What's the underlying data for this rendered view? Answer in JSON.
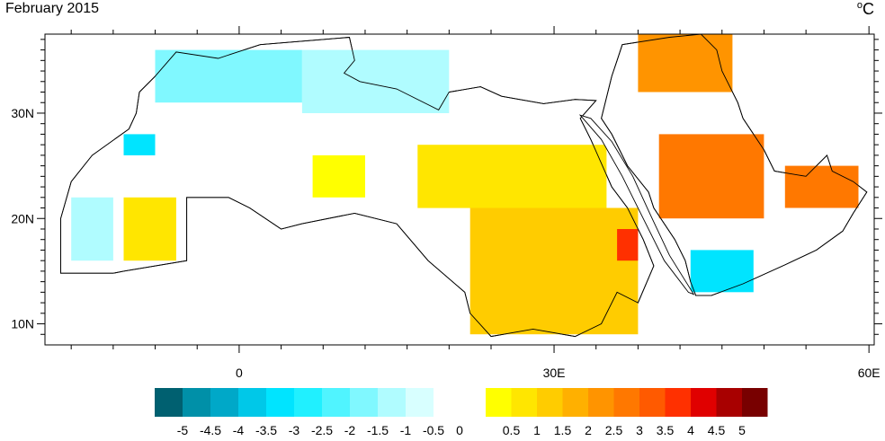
{
  "title": "February 2015",
  "units": {
    "degree": "o",
    "letter": "C"
  },
  "axes": {
    "lon_ticks": [
      {
        "value": -24,
        "label": ""
      },
      {
        "value": -20,
        "label": ""
      },
      {
        "value": -16,
        "label": ""
      },
      {
        "value": -12,
        "label": ""
      },
      {
        "value": -8,
        "label": ""
      },
      {
        "value": -4,
        "label": ""
      },
      {
        "value": 0,
        "label": "0"
      },
      {
        "value": 4,
        "label": ""
      },
      {
        "value": 8,
        "label": ""
      },
      {
        "value": 12,
        "label": ""
      },
      {
        "value": 16,
        "label": ""
      },
      {
        "value": 20,
        "label": ""
      },
      {
        "value": 24,
        "label": ""
      },
      {
        "value": 30,
        "label": "30E"
      },
      {
        "value": 34,
        "label": ""
      },
      {
        "value": 38,
        "label": ""
      },
      {
        "value": 42,
        "label": ""
      },
      {
        "value": 46,
        "label": ""
      },
      {
        "value": 50,
        "label": ""
      },
      {
        "value": 54,
        "label": ""
      },
      {
        "value": 60,
        "label": "60E"
      }
    ],
    "lat_ticks": [
      {
        "value": 10,
        "label": "10N"
      },
      {
        "value": 20,
        "label": "20N"
      },
      {
        "value": 30,
        "label": "30N"
      }
    ],
    "lon_range": [
      -18.5,
      60.5
    ],
    "lat_range": [
      8,
      37.5
    ]
  },
  "colorbar": {
    "labels": [
      "-5",
      "-4.5",
      "-4",
      "-3.5",
      "-3",
      "-2.5",
      "-2",
      "-1.5",
      "-1",
      "-0.5",
      "0",
      "0.5",
      "1",
      "1.5",
      "2",
      "2.5",
      "3",
      "3.5",
      "4",
      "4.5",
      "5"
    ],
    "colors": [
      "#006070",
      "#0090a8",
      "#00a8c8",
      "#00c8e8",
      "#00e4ff",
      "#20f0ff",
      "#50f4ff",
      "#80f8ff",
      "#b0fcff",
      "#d8ffff",
      "#ffffff",
      "#ffff00",
      "#ffe600",
      "#ffcc00",
      "#ffb000",
      "#ff9400",
      "#ff7800",
      "#ff5a00",
      "#ff3000",
      "#e00000",
      "#a80000",
      "#780000"
    ]
  },
  "anomaly_regions": [
    {
      "name": "morocco-algeria-north",
      "bin": -1.5,
      "lon": [
        -8,
        6
      ],
      "lat": [
        31,
        36
      ]
    },
    {
      "name": "tunisia-libya-north",
      "bin": -1,
      "lon": [
        6,
        20
      ],
      "lat": [
        30,
        36
      ]
    },
    {
      "name": "west-sahara-cold",
      "bin": -3,
      "lon": [
        -11,
        -8
      ],
      "lat": [
        26,
        28
      ]
    },
    {
      "name": "mauritania-cool",
      "bin": -1,
      "lon": [
        -16,
        -12
      ],
      "lat": [
        16,
        22
      ]
    },
    {
      "name": "mauritania-warm",
      "bin": 1,
      "lon": [
        -11,
        -6
      ],
      "lat": [
        16,
        22
      ]
    },
    {
      "name": "algeria-warm",
      "bin": 0.5,
      "lon": [
        7,
        12
      ],
      "lat": [
        22,
        26
      ]
    },
    {
      "name": "libya-egypt-warm",
      "bin": 1,
      "lon": [
        17,
        35
      ],
      "lat": [
        21,
        27
      ]
    },
    {
      "name": "sudan-warm",
      "bin": 1.5,
      "lon": [
        22,
        38
      ],
      "lat": [
        9,
        21
      ]
    },
    {
      "name": "eritrea-hot",
      "bin": 4,
      "lon": [
        36,
        38
      ],
      "lat": [
        16,
        19
      ]
    },
    {
      "name": "iraq-warm",
      "bin": 2.5,
      "lon": [
        38,
        47
      ],
      "lat": [
        32,
        37.5
      ]
    },
    {
      "name": "saudi-hot",
      "bin": 3,
      "lon": [
        40,
        50
      ],
      "lat": [
        20,
        28
      ]
    },
    {
      "name": "oman-uae-warm",
      "bin": 3,
      "lon": [
        52,
        59
      ],
      "lat": [
        21,
        25
      ]
    },
    {
      "name": "yemen-cold",
      "bin": -3,
      "lon": [
        43,
        49
      ],
      "lat": [
        13,
        17
      ]
    }
  ]
}
